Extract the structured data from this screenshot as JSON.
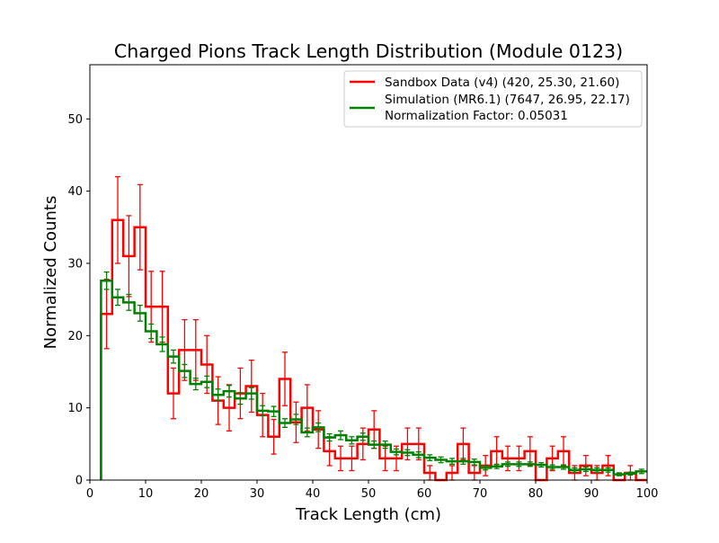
{
  "chart_data": {
    "type": "histogram-step",
    "title": "Charged Pions Track Length Distribution (Module 0123)",
    "xlabel": "Track Length (cm)",
    "ylabel": "Normalized Counts",
    "xlim": [
      0,
      100
    ],
    "ylim": [
      0,
      57.5
    ],
    "x_ticks": [
      0,
      10,
      20,
      30,
      40,
      50,
      60,
      70,
      80,
      90,
      100
    ],
    "y_ticks": [
      0,
      10,
      20,
      30,
      40,
      50
    ],
    "grid": false,
    "legend_position": "upper-right",
    "legend_extra_text": "Normalization Factor: 0.05031",
    "bin_edges": [
      2,
      4,
      6,
      8,
      10,
      12,
      14,
      16,
      18,
      20,
      22,
      24,
      26,
      28,
      30,
      32,
      34,
      36,
      38,
      40,
      42,
      44,
      46,
      48,
      50,
      52,
      54,
      56,
      58,
      60,
      62,
      64,
      66,
      68,
      70,
      72,
      74,
      76,
      78,
      80,
      82,
      84,
      86,
      88,
      90,
      92,
      94,
      96,
      98,
      100
    ],
    "series": [
      {
        "name": "Sandbox Data (v4) (420, 25.30, 21.60)",
        "color": "#ff0000",
        "values": [
          23,
          36,
          31,
          35,
          24,
          24,
          12,
          18,
          18,
          16,
          11,
          10,
          12,
          13,
          9,
          6,
          14,
          8,
          10,
          7,
          4,
          3,
          3,
          5,
          7,
          3,
          3,
          5,
          5,
          1,
          0,
          1,
          5,
          1,
          2,
          4,
          3,
          3,
          4,
          0,
          3,
          4,
          1,
          2,
          1,
          2,
          0,
          1,
          0
        ],
        "errors": [
          4.8,
          6,
          5.6,
          5.9,
          4.9,
          4.9,
          3.5,
          4.2,
          4.2,
          4,
          3.3,
          3.2,
          3.5,
          3.6,
          3,
          2.4,
          3.7,
          2.8,
          3.2,
          2.6,
          2,
          1.7,
          1.7,
          2.2,
          2.6,
          1.7,
          1.7,
          2.2,
          2.2,
          1,
          0,
          1,
          2.2,
          1,
          1.4,
          2,
          1.7,
          1.7,
          2,
          0,
          1.7,
          2,
          1,
          1.4,
          1,
          1.4,
          0,
          1,
          0
        ]
      },
      {
        "name": "Simulation (MR6.1) (7647, 26.95, 22.17)",
        "color": "#008000",
        "values": [
          27.6,
          25.3,
          24.6,
          23.1,
          20.6,
          18.8,
          17.1,
          15.1,
          13.3,
          13.6,
          11.8,
          12.3,
          11.3,
          12,
          9.6,
          9.5,
          7.9,
          8.4,
          6.6,
          7.3,
          5.9,
          6.2,
          5.5,
          6,
          4.9,
          4.9,
          3.9,
          3.8,
          3.5,
          3.1,
          2.8,
          2.6,
          2.6,
          2.5,
          1.7,
          1.9,
          2.2,
          2.2,
          2.2,
          2.1,
          1.8,
          1.8,
          1.4,
          1.5,
          1.4,
          1.4,
          0.8,
          0.9,
          1.2
        ],
        "errors": [
          1.2,
          1.1,
          1.1,
          1.1,
          1,
          1,
          0.9,
          0.9,
          0.8,
          0.8,
          0.8,
          0.8,
          0.8,
          0.8,
          0.7,
          0.7,
          0.6,
          0.7,
          0.6,
          0.6,
          0.5,
          0.6,
          0.5,
          0.5,
          0.5,
          0.5,
          0.4,
          0.4,
          0.4,
          0.4,
          0.4,
          0.4,
          0.4,
          0.4,
          0.3,
          0.3,
          0.3,
          0.3,
          0.3,
          0.3,
          0.3,
          0.3,
          0.3,
          0.3,
          0.3,
          0.3,
          0.2,
          0.2,
          0.3
        ]
      }
    ]
  }
}
